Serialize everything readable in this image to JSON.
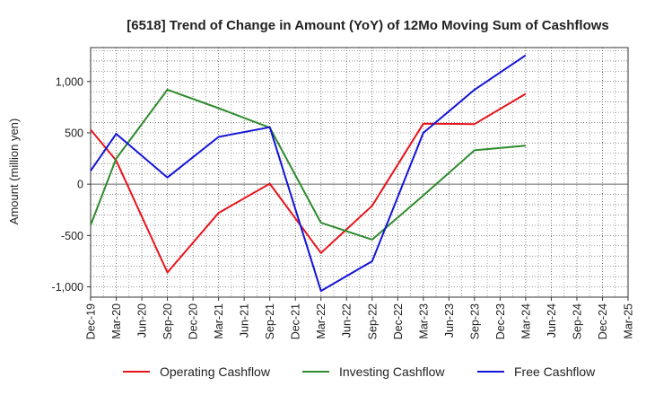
{
  "chart_data": {
    "type": "line",
    "title": "[6518]  Trend of Change in Amount (YoY) of 12Mo Moving Sum of Cashflows",
    "xlabel": "",
    "ylabel": "Amount (million yen)",
    "ylim": [
      -1100,
      1330
    ],
    "yticks": [
      1000,
      500,
      0,
      -500,
      -1000
    ],
    "ytick_labels": [
      "1,000",
      "500",
      "0",
      "-500",
      "-1,000"
    ],
    "categories": [
      "Dec-19",
      "Mar-20",
      "Jun-20",
      "Sep-20",
      "Dec-20",
      "Mar-21",
      "Jun-21",
      "Sep-21",
      "Dec-21",
      "Mar-22",
      "Jun-22",
      "Sep-22",
      "Dec-22",
      "Mar-23",
      "Jun-23",
      "Sep-23",
      "Dec-23",
      "Mar-24",
      "Jun-24",
      "Sep-24",
      "Dec-24",
      "Mar-25"
    ],
    "grid": true,
    "legend_position": "bottom",
    "series": [
      {
        "name": "Operating Cashflow",
        "color": "#e8141c",
        "values": [
          530,
          230,
          null,
          -860,
          null,
          -280,
          null,
          5,
          null,
          -670,
          null,
          -210,
          null,
          590,
          null,
          585,
          null,
          880,
          null,
          null,
          null,
          null
        ]
      },
      {
        "name": "Investing Cashflow",
        "color": "#2e8b2e",
        "values": [
          -400,
          250,
          null,
          920,
          null,
          740,
          null,
          550,
          null,
          -375,
          null,
          -540,
          null,
          -110,
          null,
          330,
          null,
          375,
          null,
          null,
          null,
          null
        ]
      },
      {
        "name": "Free Cashflow",
        "color": "#1414d8",
        "values": [
          130,
          490,
          null,
          65,
          null,
          460,
          null,
          555,
          null,
          -1040,
          null,
          -750,
          null,
          500,
          null,
          920,
          null,
          1255,
          null,
          null,
          null,
          null
        ]
      }
    ]
  }
}
